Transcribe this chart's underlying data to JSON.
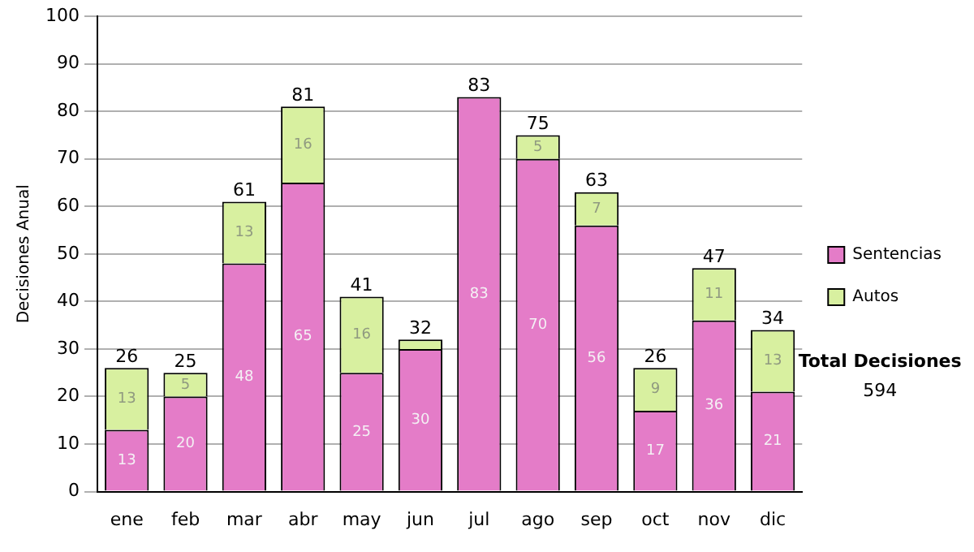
{
  "chart_data": {
    "type": "bar",
    "stacked": true,
    "ylabel": "Decisiones Anual",
    "categories": [
      "ene",
      "feb",
      "mar",
      "abr",
      "may",
      "jun",
      "jul",
      "ago",
      "sep",
      "oct",
      "nov",
      "dic"
    ],
    "series": [
      {
        "name": "Sentencias",
        "color": "#e47cc8",
        "values": [
          13,
          20,
          48,
          65,
          25,
          30,
          83,
          70,
          56,
          17,
          36,
          21
        ],
        "value_labels": [
          "13",
          "20",
          "48",
          "65",
          "25",
          "30",
          "83",
          "70",
          "56",
          "17",
          "36",
          "21"
        ]
      },
      {
        "name": "Autos",
        "color": "#d8f0a0",
        "values": [
          13,
          5,
          13,
          16,
          16,
          2,
          0,
          5,
          7,
          9,
          11,
          13
        ],
        "value_labels": [
          "13",
          "5",
          "13",
          "16",
          "16",
          null,
          null,
          "5",
          "7",
          "9",
          "11",
          "13"
        ]
      }
    ],
    "totals": [
      "26",
      "25",
      "61",
      "81",
      "41",
      "32",
      "83",
      "75",
      "63",
      "26",
      "47",
      "34"
    ],
    "ylim": [
      0,
      100
    ],
    "yticks": [
      0,
      10,
      20,
      30,
      40,
      50,
      60,
      70,
      80,
      90,
      100
    ],
    "grid": "y",
    "legend": "right",
    "annotations": [
      "Total Decisiones",
      "594"
    ]
  }
}
